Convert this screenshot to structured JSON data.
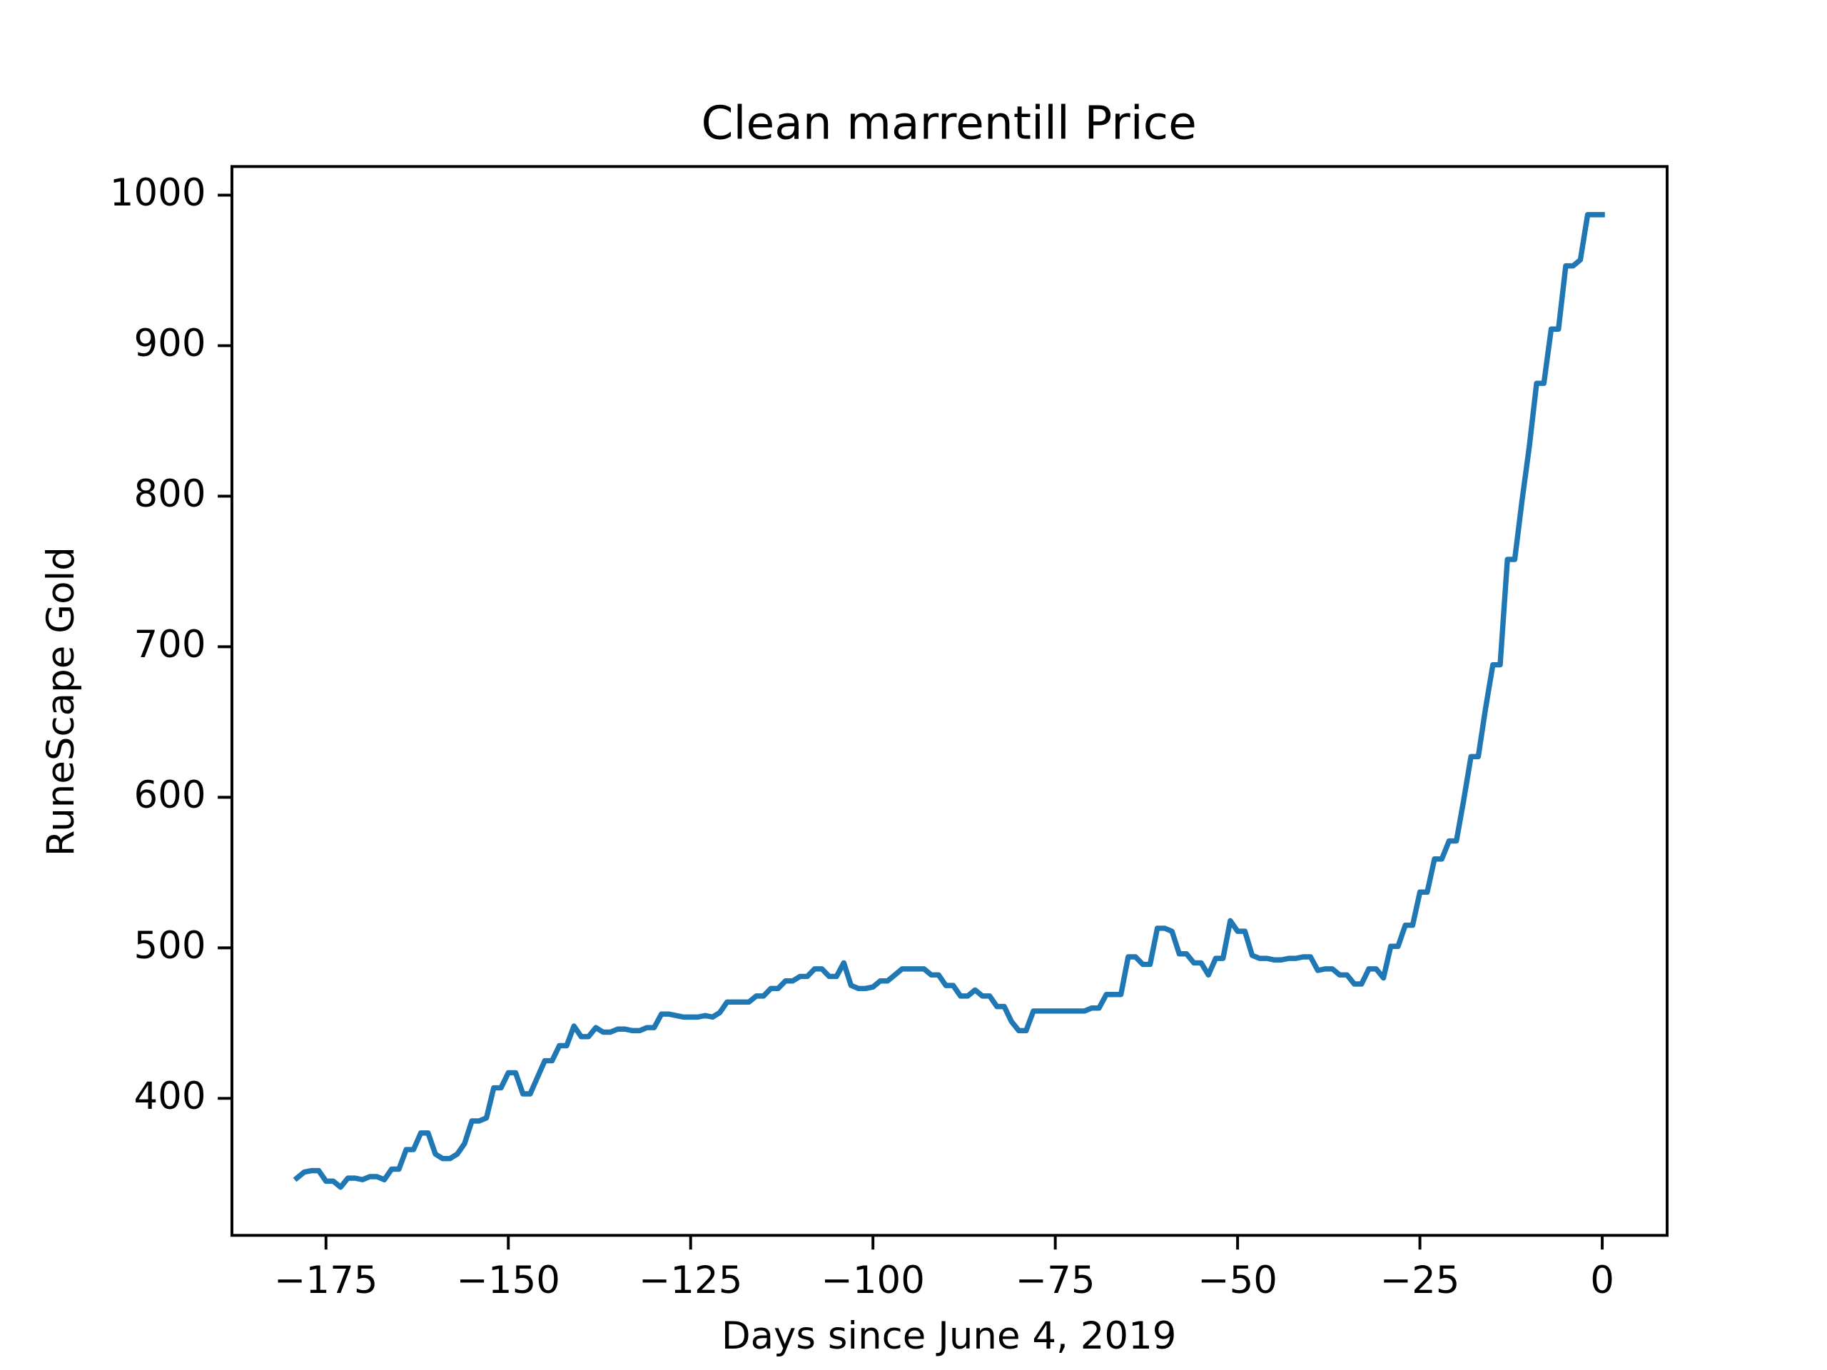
{
  "chart_data": {
    "type": "line",
    "title": "Clean marrentill Price",
    "xlabel": "Days since June 4, 2019",
    "ylabel": "RuneScape Gold",
    "color": "#1f77b4",
    "x": [
      -179,
      -178,
      -177,
      -176,
      -175,
      -174,
      -173,
      -172,
      -171,
      -170,
      -169,
      -168,
      -167,
      -166,
      -165,
      -164,
      -163,
      -162,
      -161,
      -160,
      -159,
      -158,
      -157,
      -156,
      -155,
      -154,
      -153,
      -152,
      -151,
      -150,
      -149,
      -148,
      -147,
      -146,
      -145,
      -144,
      -143,
      -142,
      -141,
      -140,
      -139,
      -138,
      -137,
      -136,
      -135,
      -134,
      -133,
      -132,
      -131,
      -130,
      -129,
      -128,
      -127,
      -126,
      -125,
      -124,
      -123,
      -122,
      -121,
      -120,
      -119,
      -118,
      -117,
      -116,
      -115,
      -114,
      -113,
      -112,
      -111,
      -110,
      -109,
      -108,
      -107,
      -106,
      -105,
      -104,
      -103,
      -102,
      -101,
      -100,
      -99,
      -98,
      -97,
      -96,
      -95,
      -94,
      -93,
      -92,
      -91,
      -90,
      -89,
      -88,
      -87,
      -86,
      -85,
      -84,
      -83,
      -82,
      -81,
      -80,
      -79,
      -78,
      -77,
      -76,
      -75,
      -74,
      -73,
      -72,
      -71,
      -70,
      -69,
      -68,
      -67,
      -66,
      -65,
      -64,
      -63,
      -62,
      -61,
      -60,
      -59,
      -58,
      -57,
      -56,
      -55,
      -54,
      -53,
      -52,
      -51,
      -50,
      -49,
      -48,
      -47,
      -46,
      -45,
      -44,
      -43,
      -42,
      -41,
      -40,
      -39,
      -38,
      -37,
      -36,
      -35,
      -34,
      -33,
      -32,
      -31,
      -30,
      -29,
      -28,
      -27,
      -26,
      -25,
      -24,
      -23,
      -22,
      -21,
      -20,
      -19,
      -18,
      -17,
      -16,
      -15,
      -14,
      -13,
      -12,
      -11,
      -10,
      -9,
      -8,
      -7,
      -6,
      -5,
      -4,
      -3,
      -2,
      -1,
      0
    ],
    "values": [
      347,
      351,
      352,
      352,
      345,
      345,
      341,
      347,
      347,
      346,
      348,
      348,
      346,
      353,
      353,
      366,
      366,
      377,
      377,
      363,
      360,
      360,
      363,
      370,
      385,
      385,
      387,
      407,
      407,
      417,
      417,
      403,
      403,
      414,
      425,
      425,
      435,
      435,
      448,
      441,
      441,
      447,
      444,
      444,
      446,
      446,
      445,
      445,
      447,
      447,
      456,
      456,
      455,
      454,
      454,
      454,
      455,
      454,
      457,
      464,
      464,
      464,
      464,
      468,
      468,
      473,
      473,
      478,
      478,
      481,
      481,
      486,
      486,
      481,
      481,
      490,
      475,
      473,
      473,
      474,
      478,
      478,
      482,
      486,
      486,
      486,
      486,
      482,
      482,
      475,
      475,
      468,
      468,
      472,
      468,
      468,
      461,
      461,
      451,
      445,
      445,
      458,
      458,
      458,
      458,
      458,
      458,
      458,
      458,
      460,
      460,
      469,
      469,
      469,
      494,
      494,
      489,
      489,
      513,
      513,
      511,
      496,
      496,
      490,
      490,
      482,
      493,
      493,
      518,
      511,
      511,
      495,
      493,
      493,
      492,
      492,
      493,
      493,
      494,
      494,
      485,
      486,
      486,
      482,
      482,
      476,
      476,
      486,
      486,
      480,
      501,
      501,
      515,
      515,
      537,
      537,
      559,
      559,
      571,
      571,
      598,
      627,
      627,
      659,
      688,
      688,
      758,
      758,
      797,
      833,
      875,
      875,
      911,
      911,
      953,
      953,
      957,
      987,
      987,
      987
    ],
    "xlim": [
      -187.9,
      8.9
    ],
    "ylim": [
      309,
      1019
    ],
    "xticks": [
      {
        "value": -175,
        "label": "−175"
      },
      {
        "value": -150,
        "label": "−150"
      },
      {
        "value": -125,
        "label": "−125"
      },
      {
        "value": -100,
        "label": "−100"
      },
      {
        "value": -75,
        "label": "−75"
      },
      {
        "value": -50,
        "label": "−50"
      },
      {
        "value": -25,
        "label": "−25"
      },
      0
    ],
    "yticks": [
      400,
      500,
      600,
      700,
      800,
      900,
      1000
    ]
  }
}
